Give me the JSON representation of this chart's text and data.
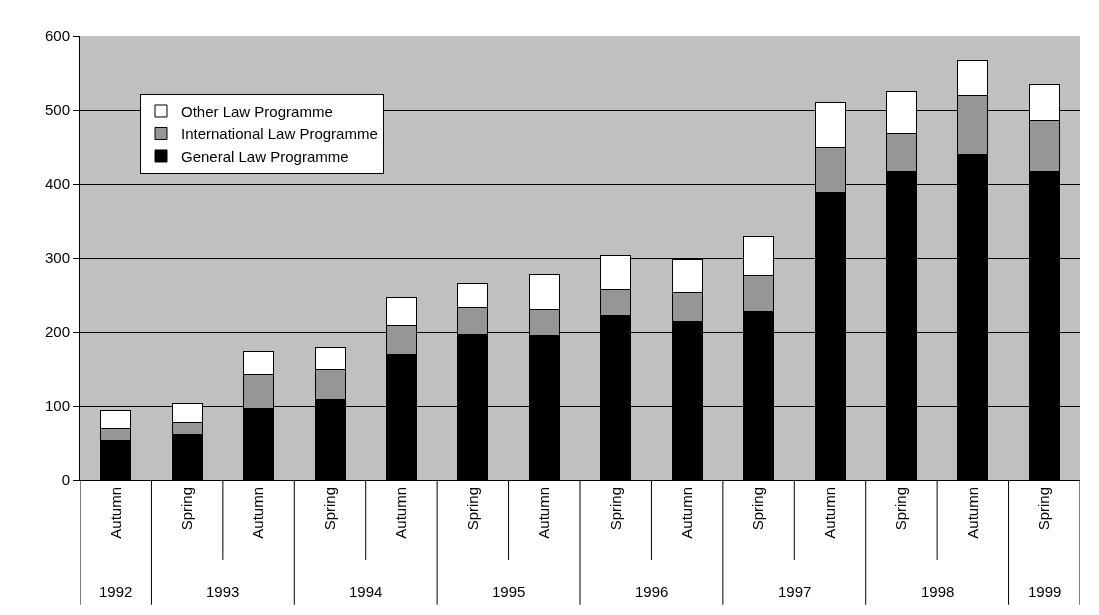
{
  "chart_data": {
    "type": "bar",
    "stacked": true,
    "categories": [
      "Autumn",
      "Spring",
      "Autumn",
      "Spring",
      "Autumn",
      "Spring",
      "Autumn",
      "Spring",
      "Autumn",
      "Spring",
      "Autumn",
      "Spring",
      "Autumn",
      "Spring"
    ],
    "series": [
      {
        "name": "General Law Programme",
        "color": "#000000",
        "values": [
          53,
          62,
          96,
          109,
          169,
          197,
          195,
          222,
          214,
          228,
          389,
          417,
          440,
          417
        ]
      },
      {
        "name": "International Law Programme",
        "color": "#969696",
        "values": [
          16,
          16,
          46,
          40,
          40,
          36,
          36,
          36,
          40,
          49,
          60,
          51,
          80,
          69
        ]
      },
      {
        "name": "Other Law Programme",
        "color": "#ffffff",
        "values": [
          25,
          25,
          31,
          30,
          37,
          32,
          47,
          46,
          44,
          52,
          61,
          57,
          47,
          49
        ]
      }
    ],
    "annotations": [
      "1992",
      "1993",
      "1994",
      "1995",
      "1996",
      "1997",
      "1998",
      "1999"
    ],
    "ylim": [
      0,
      600
    ],
    "yticks": [
      0,
      100,
      200,
      300,
      400,
      500,
      600
    ],
    "grid": "y",
    "legend": "top left"
  }
}
